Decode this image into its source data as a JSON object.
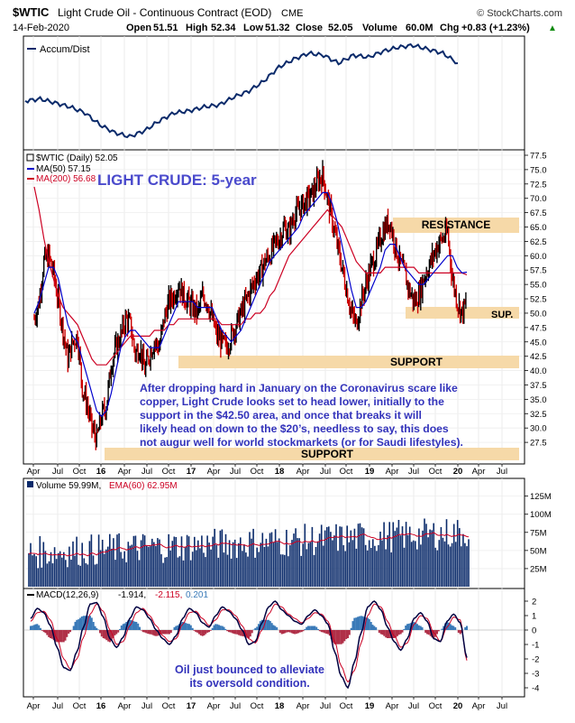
{
  "header": {
    "symbol": "$WTIC",
    "name": "Light Crude Oil - Continuous Contract (EOD)",
    "exchange": "CME",
    "brand": "© StockCharts.com",
    "date": "14-Feb-2020",
    "open_label": "Open",
    "open": "51.51",
    "high_label": "High",
    "high": "52.34",
    "low_label": "Low",
    "low": "51.32",
    "close_label": "Close",
    "close": "52.05",
    "volume_label": "Volume",
    "volume": "60.0M",
    "chg_label": "Chg",
    "chg": "+0.83 (+1.23%)",
    "chg_arrow": "▲"
  },
  "accum": {
    "legend": "Accum/Dist"
  },
  "price": {
    "legend_main": "$WTIC (Daily) 52.05",
    "legend_ma50": "MA(50) 57.15",
    "legend_ma200": "MA(200) 56.68",
    "title": "LIGHT CRUDE: 5-year",
    "resistance_label": "RESISTANCE",
    "sup_label": "SUP.",
    "support1_label": "SUPPORT",
    "support2_label": "SUPPORT",
    "annotation": [
      "After dropping hard in January on the Coronavirus scare like",
      "copper, Light Crude looks set to head lower, initially to the",
      "support in the $42.50 area, and once that breaks it will",
      "likely head on down to the $20’s, needless to say, this does",
      "not augur well for world stockmarkets (or for Saudi lifestyles)."
    ]
  },
  "volume_panel": {
    "legend_vol": "Volume 59.99M,",
    "legend_ema": "EMA(60) 62.95M"
  },
  "macd_panel": {
    "legend_macd": "MACD(12,26,9)",
    "legend_v1": "-1.914,",
    "legend_v2": "-2.115,",
    "legend_v3": "0.201",
    "annotation": [
      "Oil just bounced to alleviate",
      "its oversold condition."
    ]
  },
  "colors": {
    "ma50": "#0000cc",
    "ma200": "#cc0022",
    "price_up": "#000000",
    "price_down": "#cc0000",
    "volume": "#0a2a6a",
    "zone": "#f6d9a8",
    "annotation": "#3333bb",
    "title": "#4a4acc",
    "panel_bg": "#ffffff",
    "outer_bg": "#ffffff"
  },
  "chart_data": [
    {
      "type": "line",
      "panel": "accumulation-distribution",
      "series": [
        {
          "name": "Accum/Dist",
          "values": [
            0.42,
            0.44,
            0.4,
            0.36,
            0.3,
            0.18,
            0.1,
            0.06,
            0.12,
            0.22,
            0.3,
            0.32,
            0.36,
            0.38,
            0.46,
            0.52,
            0.62,
            0.76,
            0.84,
            0.9,
            0.88,
            0.8,
            0.88,
            0.86,
            0.92,
            0.96,
            0.98,
            0.94,
            0.9,
            0.8
          ]
        }
      ]
    },
    {
      "type": "line",
      "panel": "price",
      "x_ticks": [
        "Apr",
        "Jul",
        "Oct",
        "16",
        "Apr",
        "Jul",
        "Oct",
        "17",
        "Apr",
        "Jul",
        "Oct",
        "18",
        "Apr",
        "Jul",
        "Oct",
        "19",
        "Apr",
        "Jul",
        "Oct",
        "20",
        "Apr",
        "Jul"
      ],
      "ylim": [
        25,
        77.5
      ],
      "y_ticks": [
        "27.5",
        "30.0",
        "32.5",
        "35.0",
        "37.5",
        "40.0",
        "42.5",
        "45.0",
        "47.5",
        "50.0",
        "52.5",
        "55.0",
        "57.5",
        "60.0",
        "62.5",
        "65.0",
        "67.5",
        "70.0",
        "72.5",
        "75.0",
        "77.5"
      ],
      "series": [
        {
          "name": "$WTIC (Daily) 52.05",
          "values": [
            49,
            52,
            59,
            60,
            57,
            52,
            47,
            42,
            45,
            46,
            37,
            34,
            30,
            28,
            32,
            34,
            41,
            44,
            46,
            49,
            48,
            43,
            44,
            40,
            43,
            45,
            44,
            49,
            52,
            53,
            55,
            53,
            52,
            51,
            50,
            53,
            52,
            49,
            46,
            45,
            44,
            46,
            48,
            50,
            52,
            54,
            56,
            57,
            59,
            60,
            62,
            63,
            65,
            64,
            67,
            68,
            69,
            70,
            71,
            73,
            74,
            70,
            66,
            62,
            58,
            54,
            50,
            48,
            52,
            55,
            58,
            60,
            63,
            65,
            66,
            62,
            59,
            57,
            54,
            52,
            53,
            56,
            58,
            60,
            62,
            63,
            64,
            56,
            52,
            50,
            52.05
          ]
        },
        {
          "name": "MA(50) 57.15",
          "values": [
            50,
            52,
            55,
            58,
            58,
            56,
            52,
            48,
            46,
            45,
            42,
            39,
            36,
            33,
            32,
            33,
            36,
            40,
            44,
            46,
            47,
            47,
            46,
            45,
            44,
            44,
            44,
            46,
            48,
            50,
            52,
            52,
            52,
            52,
            51,
            51,
            51,
            51,
            49,
            47,
            46,
            45,
            46,
            47,
            49,
            51,
            53,
            55,
            57,
            59,
            60,
            61,
            62,
            63,
            64,
            65,
            67,
            68,
            69,
            70,
            71,
            71,
            69,
            66,
            62,
            58,
            54,
            51,
            51,
            52,
            54,
            56,
            58,
            61,
            62,
            62,
            60,
            58,
            57,
            56,
            55,
            55,
            56,
            57,
            58,
            59,
            60,
            60,
            58,
            57,
            57.15
          ]
        },
        {
          "name": "MA(200) 56.68",
          "values": [
            72,
            68,
            63,
            59,
            56,
            53,
            51,
            50,
            49,
            48,
            46,
            44,
            42,
            41,
            41,
            41,
            42,
            43,
            44,
            45,
            46,
            46,
            46,
            46,
            46,
            47,
            47,
            47,
            48,
            48,
            49,
            49,
            49,
            49,
            49,
            49,
            49,
            49,
            49,
            48,
            48,
            48,
            48,
            48,
            49,
            49,
            50,
            50,
            51,
            53,
            54,
            56,
            58,
            60,
            61,
            62,
            63,
            64,
            65,
            66,
            67,
            68,
            67,
            66,
            65,
            63,
            61,
            59,
            58,
            57,
            57,
            57,
            57,
            58,
            58,
            58,
            58,
            58,
            58,
            58,
            57,
            57,
            57,
            57,
            57,
            57,
            57,
            57,
            57,
            57,
            56.68
          ]
        }
      ],
      "annotations": [
        "RESISTANCE",
        "SUP.",
        "SUPPORT",
        "SUPPORT",
        "LIGHT CRUDE: 5-year"
      ]
    },
    {
      "type": "bar",
      "panel": "volume",
      "y_ticks": [
        "25M",
        "50M",
        "75M",
        "100M",
        "125M"
      ],
      "ylim": [
        0,
        137
      ],
      "series": [
        {
          "name": "Volume 59.99M",
          "values": [
            60
          ]
        },
        {
          "name": "EMA(60) 62.95M",
          "values": [
            63
          ]
        }
      ]
    },
    {
      "type": "line",
      "panel": "macd",
      "y_ticks": [
        "-4",
        "-3",
        "-2",
        "-1",
        "0",
        "1",
        "2"
      ],
      "ylim": [
        -4.5,
        2.5
      ],
      "series": [
        {
          "name": "MACD(12,26,9) -1.914",
          "values": [
            0.8,
            1.5,
            1.2,
            0.3,
            -1.2,
            -2.6,
            -2.8,
            -1.5,
            0.2,
            1.8,
            1.9,
            0.9,
            -0.6,
            -1.2,
            -0.5,
            0.8,
            1.6,
            1.4,
            0.8,
            0.0,
            -0.6,
            -1.0,
            -0.4,
            0.8,
            1.5,
            1.2,
            0.5,
            0.2,
            1.0,
            1.6,
            1.3,
            0.8,
            0.0,
            -1.0,
            -0.8,
            0.5,
            1.6,
            2.0,
            1.4,
            1.0,
            0.6,
            0.4,
            1.0,
            1.4,
            1.0,
            0.4,
            -1.5,
            -3.2,
            -4.0,
            -2.2,
            -0.2,
            1.6,
            2.0,
            1.4,
            0.2,
            -0.8,
            -1.4,
            -0.6,
            0.8,
            1.2,
            0.6,
            -0.6,
            -0.8,
            0.6,
            1.1,
            0.5,
            -1.914
          ]
        },
        {
          "name": "-2.115",
          "values": [
            0.6,
            1.2,
            1.3,
            0.7,
            -0.6,
            -2.0,
            -2.7,
            -2.0,
            -0.5,
            1.1,
            1.8,
            1.3,
            0.0,
            -1.0,
            -0.8,
            0.3,
            1.2,
            1.5,
            1.0,
            0.3,
            -0.4,
            -0.8,
            -0.6,
            0.4,
            1.2,
            1.3,
            0.8,
            0.3,
            0.7,
            1.4,
            1.4,
            1.0,
            0.3,
            -0.6,
            -0.9,
            0.0,
            1.1,
            1.8,
            1.6,
            1.1,
            0.8,
            0.5,
            0.8,
            1.2,
            1.1,
            0.6,
            -0.8,
            -2.5,
            -3.6,
            -2.8,
            -0.9,
            1.0,
            1.8,
            1.6,
            0.6,
            -0.4,
            -1.2,
            -0.9,
            0.4,
            1.0,
            0.8,
            -0.2,
            -0.8,
            0.2,
            0.9,
            0.7,
            -2.115
          ]
        },
        {
          "name": "0.201",
          "values": [
            0.201
          ]
        }
      ]
    }
  ]
}
